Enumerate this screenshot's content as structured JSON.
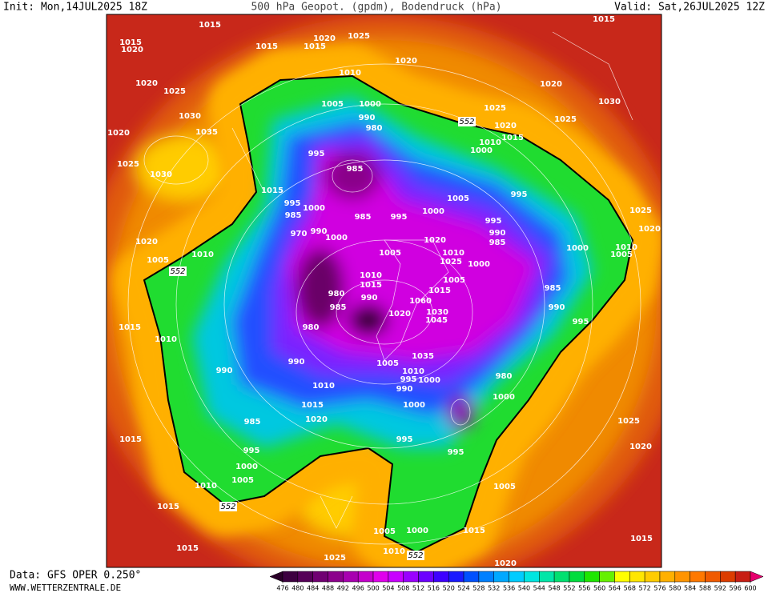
{
  "header": {
    "init": "Init: Mon,14JUL2025 18Z",
    "title": "500 hPa Geopot. (gpdm), Bodendruck (hPa)",
    "valid": "Valid: Sat,26JUL2025 12Z"
  },
  "footer": {
    "data": "Data: GFS OPER 0.250°",
    "site": "WWW.WETTERZENTRALE.DE"
  },
  "colorbar": {
    "ticks": [
      476,
      480,
      484,
      488,
      492,
      496,
      500,
      504,
      508,
      512,
      516,
      520,
      524,
      528,
      532,
      536,
      540,
      544,
      548,
      552,
      556,
      560,
      564,
      568,
      572,
      576,
      580,
      584,
      588,
      592,
      596,
      600
    ],
    "colors": [
      "#2a0028",
      "#3d0040",
      "#560058",
      "#700072",
      "#8c008c",
      "#a800b0",
      "#c400cc",
      "#e000ec",
      "#c800ff",
      "#9a00ff",
      "#6c00ff",
      "#3e00ff",
      "#1a1aff",
      "#0050ff",
      "#0080ff",
      "#00a8ff",
      "#00ccff",
      "#00e6e0",
      "#00e6a8",
      "#00e070",
      "#00dc3c",
      "#1ee600",
      "#66f000",
      "#ffff00",
      "#ffe600",
      "#ffcc00",
      "#ffb000",
      "#ff9400",
      "#ff7800",
      "#f05a00",
      "#dc3c00",
      "#c81e14",
      "#b4002a",
      "#e6006e"
    ]
  },
  "map": {
    "contour_labels": [
      "1015",
      "1015",
      "1020",
      "1020",
      "1025",
      "1015",
      "1015",
      "1020",
      "1010",
      "1020",
      "1025",
      "1030",
      "1035",
      "1020",
      "1025",
      "1030",
      "1005",
      "1000",
      "990",
      "980",
      "995",
      "985",
      "1015",
      "995",
      "1000",
      "985",
      "985",
      "995",
      "1000",
      "1005",
      "995",
      "970",
      "990",
      "1000",
      "1020",
      "1010",
      "1005",
      "1025",
      "1020",
      "1015",
      "1010",
      "1000",
      "1025",
      "1030",
      "1020",
      "1015",
      "1025",
      "1020",
      "1010",
      "1005",
      "1000",
      "995",
      "990",
      "985",
      "1020",
      "1025",
      "1010",
      "1000",
      "1005",
      "1015",
      "985",
      "990",
      "995",
      "1005",
      "1010",
      "1015",
      "980",
      "985",
      "990",
      "1020",
      "1030",
      "1045",
      "1060",
      "1035",
      "1005",
      "1010",
      "995",
      "1000",
      "990",
      "980",
      "1000",
      "1000",
      "1010",
      "1015",
      "1020",
      "990",
      "980",
      "990",
      "985",
      "995",
      "1000",
      "1005",
      "1010",
      "1015",
      "1010",
      "1015",
      "1015",
      "1015",
      "1025",
      "1005",
      "1000",
      "1010",
      "1015",
      "1005",
      "995",
      "995",
      "1025",
      "1020",
      "1015",
      "1020",
      "552",
      "552",
      "552",
      "552"
    ]
  }
}
